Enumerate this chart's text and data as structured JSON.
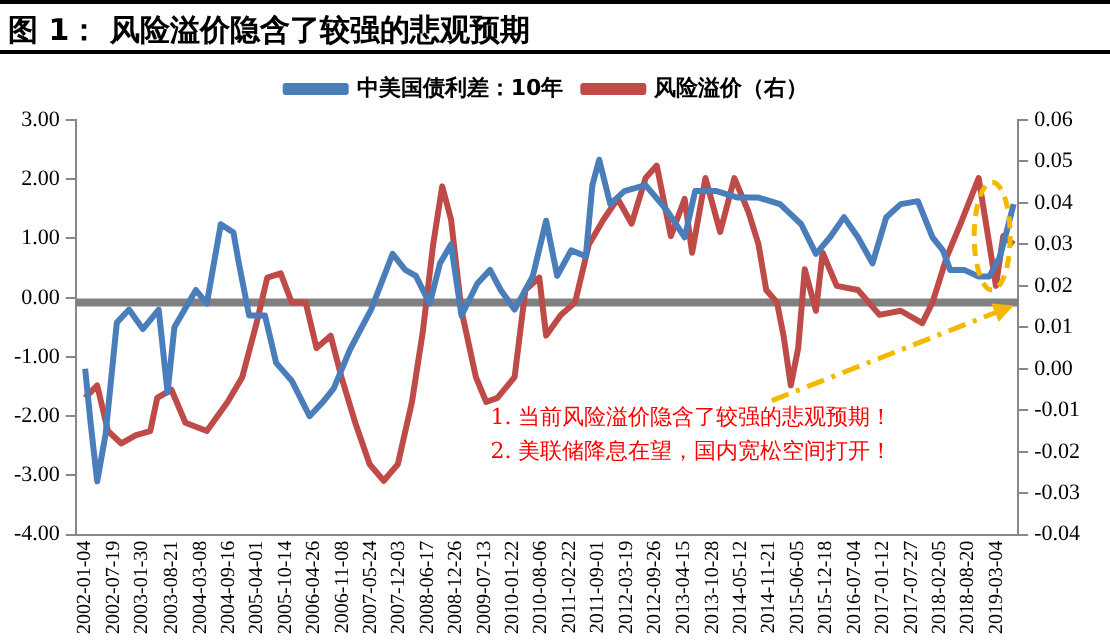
{
  "chart_data": {
    "type": "line",
    "title": "图 1： 风险溢价隐含了较强的悲观预期",
    "xlim": [
      "2001-11-01",
      "2019-08-01"
    ],
    "xticks": [
      "2002-01-04",
      "2002-07-19",
      "2003-01-30",
      "2003-08-21",
      "2004-03-08",
      "2004-09-16",
      "2005-04-01",
      "2005-10-14",
      "2006-04-26",
      "2006-11-08",
      "2007-05-24",
      "2007-12-03",
      "2008-06-17",
      "2008-12-26",
      "2009-07-13",
      "2010-01-22",
      "2010-08-06",
      "2011-02-22",
      "2011-09-01",
      "2012-03-19",
      "2012-09-26",
      "2013-04-15",
      "2013-10-28",
      "2014-05-12",
      "2014-11-21",
      "2015-06-05",
      "2015-12-18",
      "2016-07-04",
      "2017-01-12",
      "2017-07-27",
      "2018-02-05",
      "2018-08-20",
      "2019-03-04"
    ],
    "ylim": [
      -4,
      3
    ],
    "yticks": [
      {
        "value": -4,
        "label": "-4.00"
      },
      {
        "value": -3,
        "label": "-3.00"
      },
      {
        "value": -2,
        "label": "-2.00"
      },
      {
        "value": -1,
        "label": "-1.00"
      },
      {
        "value": 0,
        "label": "0.00"
      },
      {
        "value": 1,
        "label": "1.00"
      },
      {
        "value": 2,
        "label": "2.00"
      },
      {
        "value": 3,
        "label": "3.00"
      }
    ],
    "y2lim": [
      -0.04,
      0.06
    ],
    "y2ticks": [
      -0.04,
      -0.03,
      -0.02,
      -0.01,
      {
        "value": 0,
        "label": "0.00"
      },
      0.01,
      0.02,
      0.03,
      0.04,
      0.05,
      0.06
    ],
    "grid": false,
    "legend": "top",
    "marker": "none",
    "line_style": "solid",
    "ref_lines": [
      {
        "axis": "y2",
        "value": 0.016,
        "color": "#808080"
      }
    ],
    "annotations": [
      {
        "text": "1. 当前风险溢价隐含了较强的悲观预期！",
        "x": "2019-07-01",
        "y": -0.13
      },
      "2. 美联储降息在望，国内宽松空间打开！"
    ],
    "series": [
      {
        "name": "中美国债利差：10年",
        "color": "#4a7ebb",
        "x": [
          "2002-01-04",
          "2002-02-10",
          "2002-03-28",
          "2002-05-25",
          "2002-08-10",
          "2002-11-02",
          "2003-02-05",
          "2003-05-25",
          "2003-07-25",
          "2003-09-10",
          "2004-02-05",
          "2004-04-20",
          "2004-07-25",
          "2004-10-20",
          "2004-11-25",
          "2005-02-05",
          "2005-05-25",
          "2005-08-10",
          "2005-11-25",
          "2006-03-28",
          "2006-07-01",
          "2006-09-10",
          "2007-01-01",
          "2007-05-25",
          "2007-10-20",
          "2008-01-15",
          "2008-03-28",
          "2008-07-01",
          "2008-09-10",
          "2008-11-25",
          "2009-02-05",
          "2009-05-25",
          "2009-08-20",
          "2009-11-02",
          "2010-02-05",
          "2010-06-10",
          "2010-09-10",
          "2010-11-25",
          "2011-03-01",
          "2011-06-10",
          "2011-07-25",
          "2011-09-10",
          "2011-11-25",
          "2012-03-01",
          "2012-07-25",
          "2012-12-20",
          "2013-04-20",
          "2013-07-01",
          "2013-11-25",
          "2014-04-20",
          "2014-09-10",
          "2015-02-05",
          "2015-07-01",
          "2015-10-10",
          "2016-01-15",
          "2016-04-20",
          "2016-07-25",
          "2016-11-02",
          "2017-02-05",
          "2017-05-15",
          "2017-09-10",
          "2017-12-20",
          "2018-03-01",
          "2018-04-20",
          "2018-07-25",
          "2018-11-02",
          "2019-01-15",
          "2019-03-28",
          "2019-05-15",
          "2019-07-01"
        ],
        "values": [
          -1.2,
          -2.1,
          -3.1,
          -2.3,
          -0.42,
          -0.2,
          -0.53,
          -0.2,
          -1.6,
          -0.5,
          0.13,
          -0.1,
          1.24,
          1.1,
          0.6,
          -0.3,
          -0.3,
          -1.1,
          -1.4,
          -2.0,
          -1.75,
          -1.53,
          -0.87,
          -0.2,
          0.74,
          0.47,
          0.37,
          -0.1,
          0.58,
          0.9,
          -0.3,
          0.24,
          0.47,
          0.13,
          -0.2,
          0.36,
          1.3,
          0.37,
          0.8,
          0.7,
          1.9,
          2.33,
          1.58,
          1.8,
          1.9,
          1.47,
          1.02,
          1.8,
          1.8,
          1.69,
          1.69,
          1.58,
          1.24,
          0.74,
          1.02,
          1.36,
          1.02,
          0.58,
          1.36,
          1.58,
          1.63,
          1.02,
          0.8,
          0.47,
          0.47,
          0.36,
          0.36,
          0.69,
          1.13,
          1.58
        ]
      },
      {
        "name": "风险溢价（右）",
        "color": "#be4b48",
        "axis": "y2",
        "x": [
          "2002-01-04",
          "2002-03-28",
          "2002-06-10",
          "2002-09-10",
          "2002-12-20",
          "2003-03-28",
          "2003-05-15",
          "2003-08-20",
          "2003-11-25",
          "2004-04-20",
          "2004-09-10",
          "2004-12-20",
          "2005-03-28",
          "2005-06-10",
          "2005-09-10",
          "2005-11-25",
          "2006-03-01",
          "2006-05-15",
          "2006-08-20",
          "2006-11-02",
          "2007-02-05",
          "2007-05-15",
          "2007-08-20",
          "2007-11-25",
          "2008-03-01",
          "2008-05-15",
          "2008-07-25",
          "2008-09-25",
          "2008-11-25",
          "2009-02-05",
          "2009-05-15",
          "2009-07-25",
          "2009-10-10",
          "2010-02-05",
          "2010-04-20",
          "2010-07-25",
          "2010-09-10",
          "2010-12-20",
          "2011-03-28",
          "2011-07-01",
          "2011-10-10",
          "2012-01-15",
          "2012-04-20",
          "2012-07-25",
          "2012-10-10",
          "2013-01-15",
          "2013-04-20",
          "2013-06-10",
          "2013-09-10",
          "2013-12-20",
          "2014-03-28",
          "2014-07-01",
          "2014-09-10",
          "2014-11-02",
          "2015-01-15",
          "2015-03-01",
          "2015-04-20",
          "2015-06-10",
          "2015-07-25",
          "2015-10-10",
          "2015-11-25",
          "2016-03-01",
          "2016-07-25",
          "2016-12-20",
          "2017-05-15",
          "2017-10-10",
          "2017-12-20",
          "2018-03-28",
          "2018-07-01",
          "2018-11-02",
          "2019-01-15",
          "2019-03-01",
          "2019-04-20",
          "2019-07-01"
        ],
        "values": [
          -0.007,
          -0.004,
          -0.015,
          -0.018,
          -0.016,
          -0.015,
          -0.007,
          -0.005,
          -0.013,
          -0.015,
          -0.008,
          -0.002,
          0.011,
          0.022,
          0.023,
          0.016,
          0.016,
          0.005,
          0.008,
          -0.002,
          -0.013,
          -0.023,
          -0.027,
          -0.023,
          -0.008,
          0.009,
          0.03,
          0.044,
          0.036,
          0.014,
          -0.002,
          -0.008,
          -0.007,
          -0.002,
          0.019,
          0.022,
          0.008,
          0.013,
          0.016,
          0.03,
          0.036,
          0.041,
          0.035,
          0.046,
          0.049,
          0.032,
          0.041,
          0.028,
          0.046,
          0.033,
          0.046,
          0.038,
          0.03,
          0.019,
          0.016,
          0.008,
          -0.004,
          0.005,
          0.024,
          0.014,
          0.028,
          0.02,
          0.019,
          0.013,
          0.014,
          0.011,
          0.016,
          0.027,
          0.035,
          0.046,
          0.03,
          0.02,
          0.032,
          0.03
        ]
      }
    ]
  }
}
